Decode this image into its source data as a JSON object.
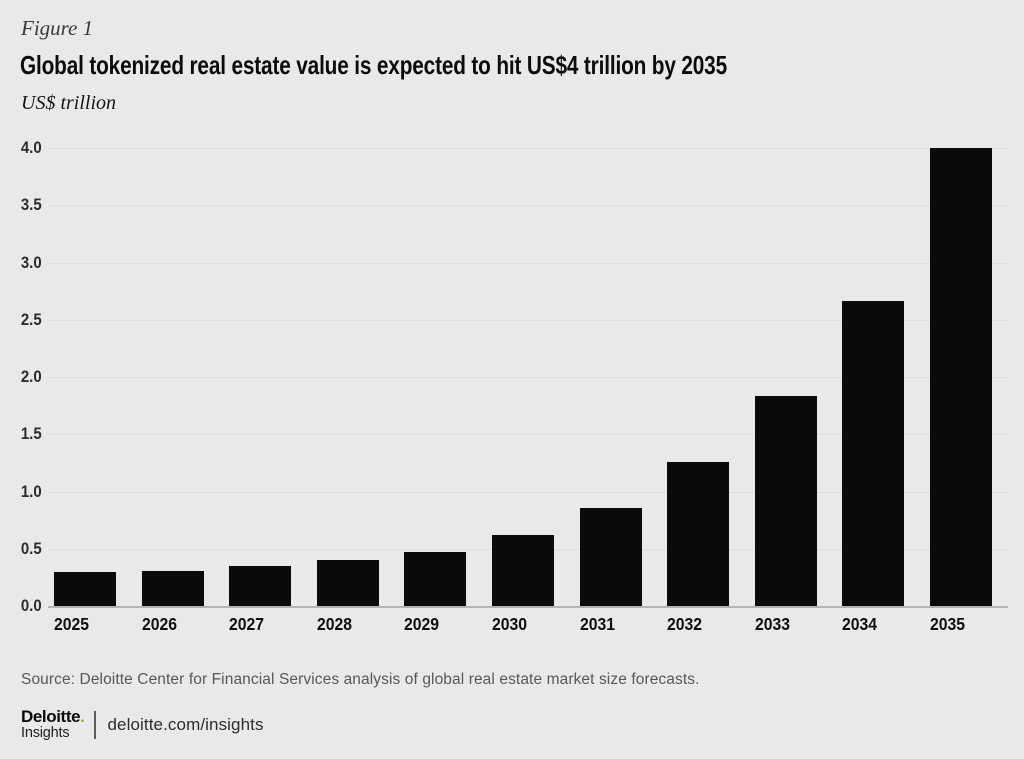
{
  "figure_label": "Figure 1",
  "title": "Global tokenized real estate value is expected to hit US$4 trillion by 2035",
  "unit_label": "US$ trillion",
  "source": "Source: Deloitte Center for Financial Services analysis of global real estate market size forecasts.",
  "footer": {
    "brand": "Deloitte",
    "brand_dot": ".",
    "brand_sub": "Insights",
    "url": "deloitte.com/insights"
  },
  "colors": {
    "background": "#e9e9e9",
    "bar": "#0b0b0d",
    "grid": "#dddddd",
    "axis": "#b4b4b4",
    "green_dot": "#86bc25"
  },
  "chart_data": {
    "type": "bar",
    "categories": [
      "2025",
      "2026",
      "2027",
      "2028",
      "2029",
      "2030",
      "2031",
      "2032",
      "2033",
      "2034",
      "2035"
    ],
    "values": [
      0.3,
      0.31,
      0.35,
      0.4,
      0.47,
      0.62,
      0.86,
      1.26,
      1.83,
      2.66,
      4.0
    ],
    "title": "Global tokenized real estate value is expected to hit US$4 trillion by 2035",
    "xlabel": "",
    "ylabel": "US$ trillion",
    "ylim": [
      0,
      4.0
    ],
    "yticks": [
      0.0,
      0.5,
      1.0,
      1.5,
      2.0,
      2.5,
      3.0,
      3.5,
      4.0
    ],
    "grid": true,
    "legend": false,
    "bar_color": "#0b0b0d"
  }
}
